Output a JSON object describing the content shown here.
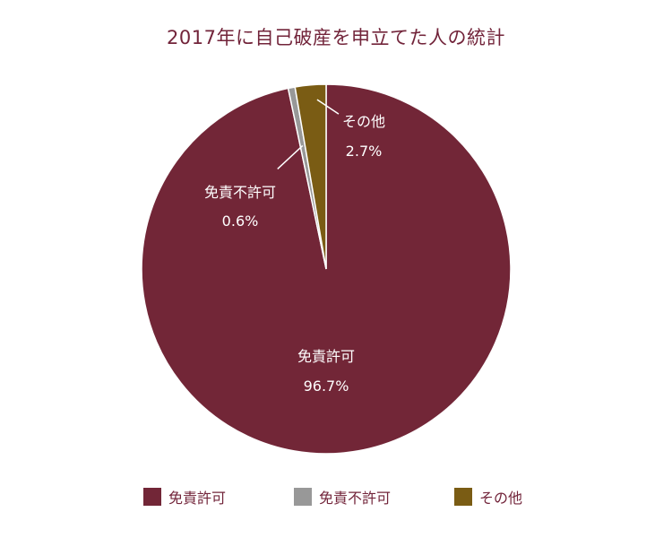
{
  "chart_data": {
    "type": "pie",
    "title": "2017年に自己破産を申立てた人の統計",
    "slices": [
      {
        "name": "免責許可",
        "value": 96.7,
        "value_label": "96.7%",
        "color": "#722637"
      },
      {
        "name": "免責不許可",
        "value": 0.6,
        "value_label": "0.6%",
        "color": "#989898"
      },
      {
        "name": "その他",
        "value": 2.7,
        "value_label": "2.7%",
        "color": "#7a5c14"
      }
    ],
    "legend_position": "bottom",
    "slice_border_color": "#ffffff",
    "label_color": "#ffffff",
    "leader_line_color": "#ffffff"
  }
}
